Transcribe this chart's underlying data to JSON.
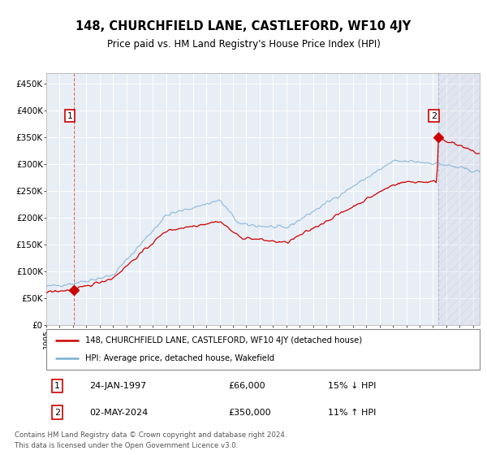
{
  "title": "148, CHURCHFIELD LANE, CASTLEFORD, WF10 4JY",
  "subtitle": "Price paid vs. HM Land Registry's House Price Index (HPI)",
  "legend_line1": "148, CHURCHFIELD LANE, CASTLEFORD, WF10 4JY (detached house)",
  "legend_line2": "HPI: Average price, detached house, Wakefield",
  "annotation1_label": "1",
  "annotation1_date": "24-JAN-1997",
  "annotation1_price": "£66,000",
  "annotation1_hpi": "15% ↓ HPI",
  "annotation2_label": "2",
  "annotation2_date": "02-MAY-2024",
  "annotation2_price": "£350,000",
  "annotation2_hpi": "11% ↑ HPI",
  "footnote_line1": "Contains HM Land Registry data © Crown copyright and database right 2024.",
  "footnote_line2": "This data is licensed under the Open Government Licence v3.0.",
  "red_color": "#cc0000",
  "blue_color": "#7bafd4",
  "bg_color": "#ffffff",
  "plot_bg": "#e8eef5",
  "grid_color": "#ffffff",
  "ylim": [
    0,
    470000
  ],
  "xlim_start": 1995.0,
  "xlim_end": 2027.5,
  "sale1_year": 1997.07,
  "sale1_price": 66000,
  "sale2_year": 2024.37,
  "sale2_price": 350000,
  "vline1_year": 1997.07,
  "vline2_year": 2024.37
}
